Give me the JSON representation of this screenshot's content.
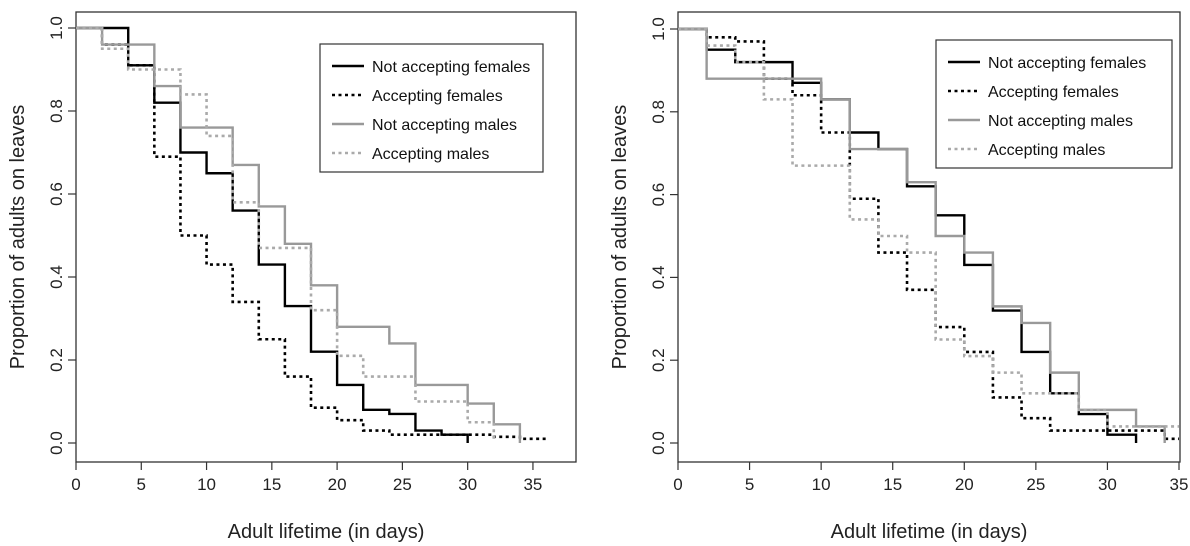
{
  "chart_data": [
    {
      "type": "line",
      "step": true,
      "xlabel": "Adult lifetime (in days)",
      "ylabel": "Proportion of adults on leaves",
      "xlim": [
        0,
        36
      ],
      "ylim": [
        0,
        1
      ],
      "x_ticks": [
        "0",
        "5",
        "10",
        "15",
        "20",
        "25",
        "30",
        "35"
      ],
      "y_ticks": [
        "0.0",
        "0.2",
        "0.4",
        "0.6",
        "0.8",
        "1.0"
      ],
      "grid": false,
      "legend_position": "top-right",
      "series": [
        {
          "name": "Not accepting females",
          "color": "#000000",
          "dash": "solid",
          "x": [
            0,
            2,
            4,
            6,
            8,
            10,
            12,
            14,
            16,
            18,
            20,
            22,
            24,
            26,
            28,
            30
          ],
          "y": [
            1.0,
            1.0,
            0.91,
            0.82,
            0.7,
            0.65,
            0.56,
            0.43,
            0.33,
            0.22,
            0.14,
            0.08,
            0.07,
            0.03,
            0.02,
            0.0
          ]
        },
        {
          "name": "Accepting females",
          "color": "#000000",
          "dash": "dotted",
          "x": [
            0,
            2,
            4,
            6,
            8,
            10,
            12,
            14,
            16,
            18,
            20,
            22,
            24,
            26,
            28,
            30,
            32,
            34,
            36
          ],
          "y": [
            1.0,
            0.96,
            0.91,
            0.69,
            0.5,
            0.43,
            0.34,
            0.25,
            0.16,
            0.085,
            0.055,
            0.03,
            0.02,
            0.02,
            0.02,
            0.02,
            0.015,
            0.01,
            0.01
          ]
        },
        {
          "name": "Not accepting males",
          "color": "#999999",
          "dash": "solid",
          "x": [
            0,
            2,
            4,
            6,
            8,
            10,
            12,
            14,
            16,
            18,
            20,
            22,
            24,
            26,
            28,
            30,
            32,
            34
          ],
          "y": [
            1.0,
            0.96,
            0.96,
            0.86,
            0.76,
            0.76,
            0.67,
            0.57,
            0.48,
            0.38,
            0.28,
            0.28,
            0.24,
            0.14,
            0.14,
            0.095,
            0.045,
            0.0
          ]
        },
        {
          "name": "Accepting males",
          "color": "#aaaaaa",
          "dash": "dotted",
          "x": [
            0,
            2,
            4,
            6,
            8,
            10,
            12,
            14,
            16,
            18,
            20,
            22,
            24,
            26,
            28,
            30,
            32
          ],
          "y": [
            1.0,
            0.95,
            0.9,
            0.9,
            0.84,
            0.74,
            0.58,
            0.47,
            0.47,
            0.32,
            0.21,
            0.16,
            0.16,
            0.1,
            0.1,
            0.05,
            0.01
          ]
        }
      ]
    },
    {
      "type": "line",
      "step": true,
      "xlabel": "Adult lifetime (in days)",
      "ylabel": "Proportion of adults on leaves",
      "xlim": [
        0,
        35
      ],
      "ylim": [
        0,
        1
      ],
      "x_ticks": [
        "0",
        "5",
        "10",
        "15",
        "20",
        "25",
        "30",
        "35"
      ],
      "y_ticks": [
        "0.0",
        "0.2",
        "0.4",
        "0.6",
        "0.8",
        "1.0"
      ],
      "grid": false,
      "legend_position": "top-right",
      "series": [
        {
          "name": "Not accepting females",
          "color": "#000000",
          "dash": "solid",
          "x": [
            0,
            2,
            4,
            6,
            8,
            10,
            12,
            14,
            16,
            18,
            20,
            22,
            24,
            26,
            28,
            30,
            32
          ],
          "y": [
            1.0,
            0.95,
            0.92,
            0.92,
            0.87,
            0.83,
            0.75,
            0.71,
            0.62,
            0.55,
            0.43,
            0.32,
            0.22,
            0.12,
            0.07,
            0.02,
            0.0
          ]
        },
        {
          "name": "Accepting females",
          "color": "#000000",
          "dash": "dotted",
          "x": [
            0,
            2,
            4,
            6,
            8,
            10,
            12,
            14,
            16,
            18,
            20,
            22,
            24,
            26,
            28,
            30,
            32,
            34,
            35
          ],
          "y": [
            1.0,
            0.98,
            0.97,
            0.88,
            0.84,
            0.75,
            0.59,
            0.46,
            0.37,
            0.28,
            0.22,
            0.11,
            0.06,
            0.03,
            0.03,
            0.03,
            0.03,
            0.01,
            0.01
          ]
        },
        {
          "name": "Not accepting males",
          "color": "#999999",
          "dash": "solid",
          "x": [
            0,
            2,
            4,
            6,
            8,
            10,
            12,
            14,
            16,
            18,
            20,
            22,
            24,
            26,
            28,
            30,
            32,
            34
          ],
          "y": [
            1.0,
            0.88,
            0.88,
            0.88,
            0.88,
            0.83,
            0.71,
            0.71,
            0.63,
            0.5,
            0.46,
            0.33,
            0.29,
            0.17,
            0.08,
            0.08,
            0.04,
            0.0
          ]
        },
        {
          "name": "Accepting males",
          "color": "#aaaaaa",
          "dash": "dotted",
          "x": [
            0,
            2,
            4,
            6,
            8,
            10,
            12,
            14,
            16,
            18,
            20,
            22,
            24,
            26,
            28,
            30,
            32,
            34,
            35
          ],
          "y": [
            1.0,
            0.96,
            0.92,
            0.83,
            0.67,
            0.67,
            0.54,
            0.5,
            0.46,
            0.25,
            0.21,
            0.17,
            0.12,
            0.12,
            0.08,
            0.04,
            0.04,
            0.04,
            0.04
          ]
        }
      ]
    }
  ]
}
